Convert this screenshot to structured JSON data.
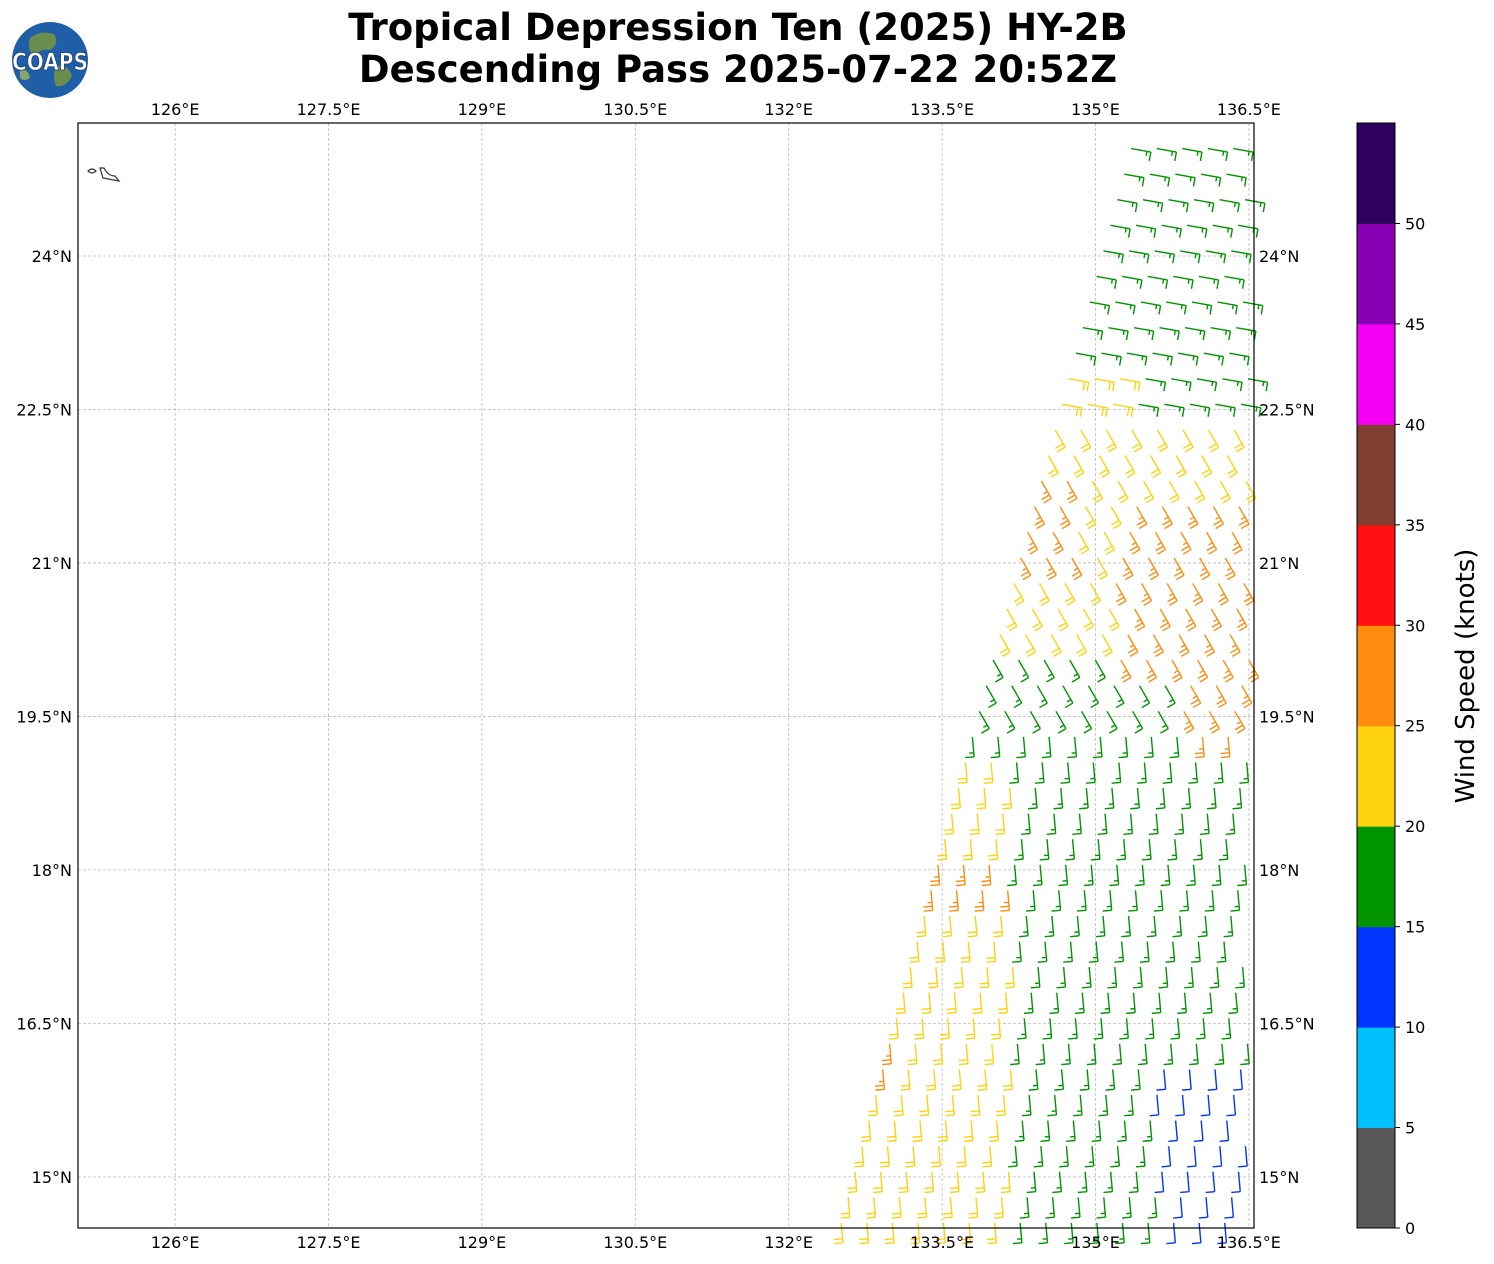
{
  "title": {
    "line1": "Tropical Depression Ten (2025) HY-2B",
    "line2": "Descending Pass 2025-07-22 20:52Z"
  },
  "logo": {
    "text": "COAPS",
    "ocean_color": "#1f5fa8",
    "land_color": "#6b8e4e"
  },
  "map": {
    "lon_ticks": [
      "126°E",
      "127.5°E",
      "129°E",
      "130.5°E",
      "132°E",
      "133.5°E",
      "135°E",
      "136.5°E"
    ],
    "lat_ticks": [
      "24°N",
      "22.5°N",
      "21°N",
      "19.5°N",
      "18°N",
      "16.5°N",
      "15°N"
    ],
    "lon_values": [
      126,
      127.5,
      129,
      130.5,
      132,
      133.5,
      135,
      136.5
    ],
    "lat_values": [
      24,
      22.5,
      21,
      19.5,
      18,
      16.5,
      15
    ],
    "lon_range": [
      125.05,
      136.55
    ],
    "lat_range": [
      14.5,
      25.3
    ],
    "grid": true,
    "coastline_color": "#333333"
  },
  "colorbar": {
    "label": "Wind Speed (knots)",
    "tick_labels": [
      "0",
      "5",
      "10",
      "15",
      "20",
      "25",
      "30",
      "35",
      "40",
      "45",
      "50"
    ],
    "bins": [
      {
        "min": 0,
        "max": 5,
        "color": "#585858"
      },
      {
        "min": 5,
        "max": 10,
        "color": "#00bfff"
      },
      {
        "min": 10,
        "max": 15,
        "color": "#0035ff"
      },
      {
        "min": 15,
        "max": 20,
        "color": "#009400"
      },
      {
        "min": 20,
        "max": 25,
        "color": "#ffd20f"
      },
      {
        "min": 25,
        "max": 30,
        "color": "#ff8c0f"
      },
      {
        "min": 30,
        "max": 35,
        "color": "#ff0f0f"
      },
      {
        "min": 35,
        "max": 40,
        "color": "#7f3f2f"
      },
      {
        "min": 40,
        "max": 45,
        "color": "#f500f5"
      },
      {
        "min": 45,
        "max": 50,
        "color": "#8700b4"
      },
      {
        "min": 50,
        "max": 55,
        "color": "#2f005f"
      }
    ]
  },
  "wind_field": {
    "description_ranges": {
      "swath_lon_east": 136.55,
      "swath_lat_range": [
        14.5,
        25.3
      ]
    }
  }
}
